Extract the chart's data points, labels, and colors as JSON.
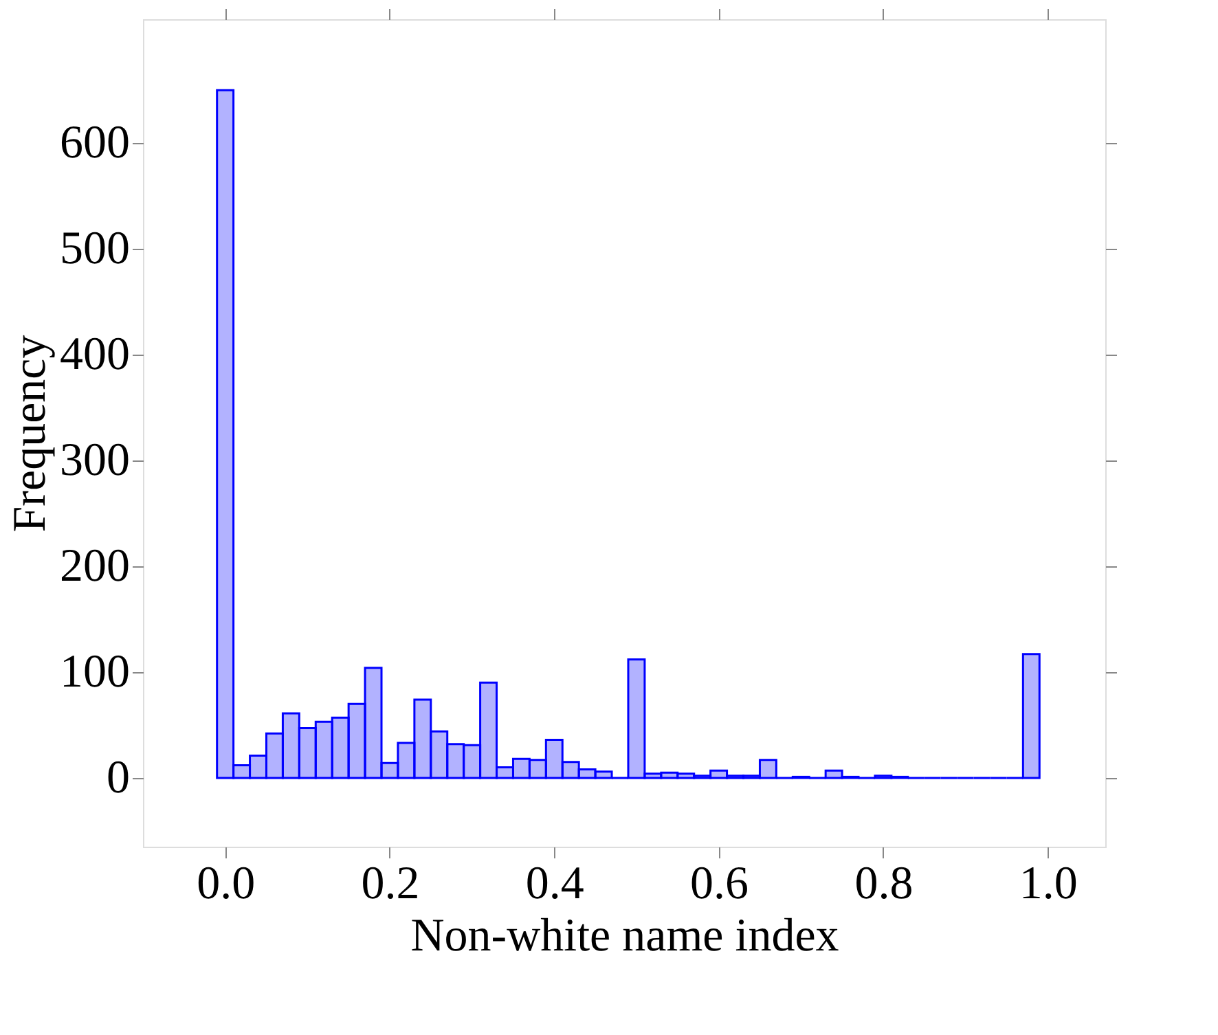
{
  "chart_data": {
    "type": "histogram",
    "xlabel": "Non-white name index",
    "ylabel": "Frequency",
    "bins": [
      -0.01,
      0.01,
      0.03,
      0.05,
      0.07,
      0.09,
      0.11,
      0.13,
      0.15,
      0.17,
      0.19,
      0.21,
      0.23,
      0.25,
      0.27,
      0.29,
      0.31,
      0.33,
      0.35,
      0.37,
      0.39,
      0.41,
      0.43,
      0.45,
      0.47,
      0.49,
      0.51,
      0.53,
      0.55,
      0.57,
      0.59,
      0.61,
      0.63,
      0.65,
      0.67,
      0.69,
      0.71,
      0.73,
      0.75,
      0.77,
      0.79,
      0.81,
      0.83,
      0.85,
      0.87,
      0.89,
      0.91,
      0.93,
      0.95,
      0.97,
      0.99
    ],
    "values": [
      650,
      12,
      21,
      42,
      61,
      47,
      53,
      57,
      70,
      104,
      14,
      33,
      74,
      44,
      32,
      31,
      90,
      10,
      18,
      17,
      36,
      15,
      8,
      6,
      0,
      112,
      4,
      5,
      4,
      2,
      7,
      2,
      2,
      17,
      0,
      1,
      0,
      7,
      1,
      0,
      2,
      1,
      0,
      0,
      0,
      0,
      0,
      0,
      0,
      117
    ],
    "color": "#0000ff",
    "xlim": [
      -0.1,
      1.07
    ],
    "ylim": [
      -65,
      717
    ],
    "xticks": [
      {
        "value": 0,
        "label": "0.0"
      },
      0.2,
      0.4,
      0.6,
      0.8,
      {
        "value": 1,
        "label": "1.0"
      }
    ],
    "yticks": [
      0,
      100,
      200,
      300,
      400,
      500,
      600
    ],
    "grid": false
  }
}
